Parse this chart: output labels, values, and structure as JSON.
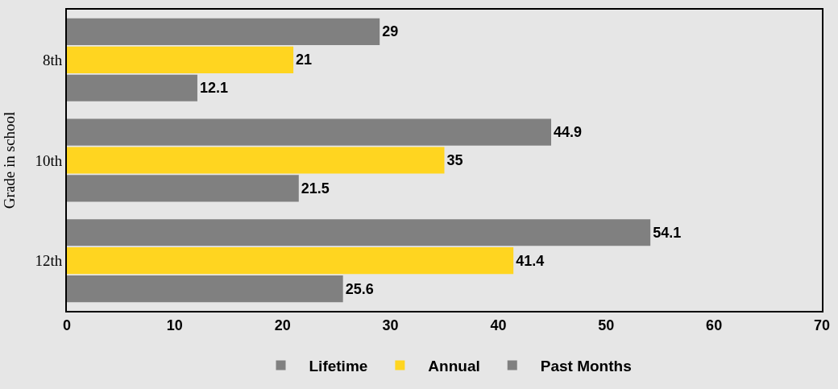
{
  "chart_data": {
    "type": "bar",
    "orientation": "horizontal",
    "ylabel": "Grade in school",
    "categories": [
      "8th",
      "10th",
      "12th"
    ],
    "series": [
      {
        "name": "Lifetime",
        "color": "#808080",
        "values": [
          29,
          44.9,
          54.1
        ]
      },
      {
        "name": "Annual",
        "color": "#ffd520",
        "values": [
          21,
          35,
          41.4
        ]
      },
      {
        "name": "Past Months",
        "color": "#808080",
        "values": [
          12.1,
          21.5,
          25.6
        ]
      }
    ],
    "xlim": [
      0,
      70
    ],
    "xticks": [
      0,
      10,
      20,
      30,
      40,
      50,
      60,
      70
    ],
    "data_labels": true,
    "legend": "bottom",
    "grid": false
  }
}
